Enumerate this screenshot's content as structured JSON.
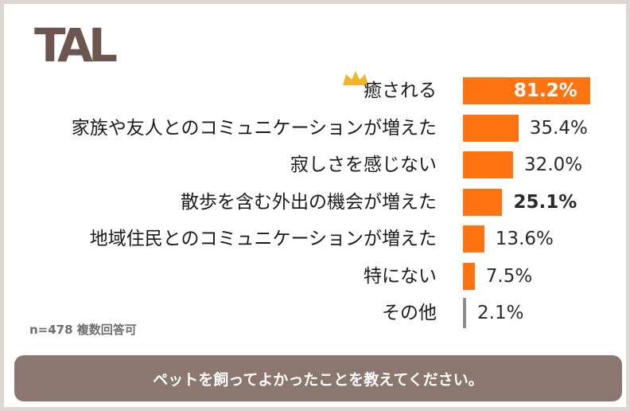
{
  "logo": {
    "text": "TAL"
  },
  "chart_data": {
    "type": "bar",
    "orientation": "horizontal",
    "categories": [
      "癒される",
      "家族や友人とのコミュニケーションが増えた",
      "寂しさを感じない",
      "散歩を含む外出の機会が増えた",
      "地域住民とのコミュニケーションが増えた",
      "特にない",
      "その他"
    ],
    "values": [
      81.2,
      35.4,
      32.0,
      25.1,
      13.6,
      7.5,
      2.1
    ],
    "value_labels": [
      "81.2%",
      "35.4%",
      "32.0%",
      "25.1%",
      "13.6%",
      "7.5%",
      "2.1%"
    ],
    "unit": "%",
    "colors": {
      "bar": "#ff7410",
      "other_bar": "#8c8c8c",
      "footer": "#8c7770"
    }
  },
  "note": "n=478 複数回答可",
  "footer": {
    "question": "ペットを飼ってよかったことを教えてください。"
  }
}
